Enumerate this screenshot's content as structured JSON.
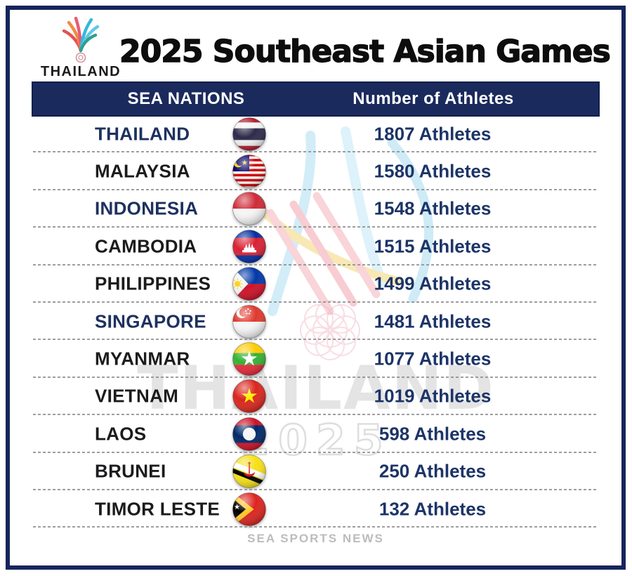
{
  "theme": {
    "frame_navy": "#16255b",
    "header_bg": "#1b2a5c",
    "header_text": "#ffffff",
    "country_navy": "#1d3160",
    "country_black": "#1b1b1d",
    "athletes_text": "#1c3467",
    "separator_gray": "#8d8d8d",
    "footer_gray": "#bcbcbc",
    "watermark_gray": "#d6d6d6"
  },
  "logo": {
    "brand": "THAILAND",
    "year": "2025",
    "emblem_icon": "sea-games-2025-emblem-icon"
  },
  "title": "2025 Southeast Asian Games",
  "table": {
    "columns": [
      {
        "label": "SEA NATIONS"
      },
      {
        "label": "Number of Athletes"
      }
    ],
    "rows": [
      {
        "country": "THAILAND",
        "athletes": 1807,
        "display": "1807 Athletes",
        "flag_icon": "thailand-flag-icon",
        "name_style": "navy"
      },
      {
        "country": "MALAYSIA",
        "athletes": 1580,
        "display": "1580 Athletes",
        "flag_icon": "malaysia-flag-icon",
        "name_style": "black"
      },
      {
        "country": "INDONESIA",
        "athletes": 1548,
        "display": "1548 Athletes",
        "flag_icon": "indonesia-flag-icon",
        "name_style": "navy"
      },
      {
        "country": "CAMBODIA",
        "athletes": 1515,
        "display": "1515 Athletes",
        "flag_icon": "cambodia-flag-icon",
        "name_style": "black"
      },
      {
        "country": "PHILIPPINES",
        "athletes": 1499,
        "display": "1499 Athletes",
        "flag_icon": "philippines-flag-icon",
        "name_style": "black"
      },
      {
        "country": "SINGAPORE",
        "athletes": 1481,
        "display": "1481 Athletes",
        "flag_icon": "singapore-flag-icon",
        "name_style": "navy"
      },
      {
        "country": "MYANMAR",
        "athletes": 1077,
        "display": "1077 Athletes",
        "flag_icon": "myanmar-flag-icon",
        "name_style": "black"
      },
      {
        "country": "VIETNAM",
        "athletes": 1019,
        "display": "1019 Athletes",
        "flag_icon": "vietnam-flag-icon",
        "name_style": "black"
      },
      {
        "country": "LAOS",
        "athletes": 598,
        "display": "598 Athletes",
        "flag_icon": "laos-flag-icon",
        "name_style": "black"
      },
      {
        "country": "BRUNEI",
        "athletes": 250,
        "display": "250 Athletes",
        "flag_icon": "brunei-flag-icon",
        "name_style": "black"
      },
      {
        "country": "TIMOR LESTE",
        "athletes": 132,
        "display": "132 Athletes",
        "flag_icon": "timor-leste-flag-icon",
        "name_style": "black"
      }
    ]
  },
  "watermark": {
    "line1": "THAILAND",
    "line2": "2025"
  },
  "footer": "SEA SPORTS NEWS"
}
